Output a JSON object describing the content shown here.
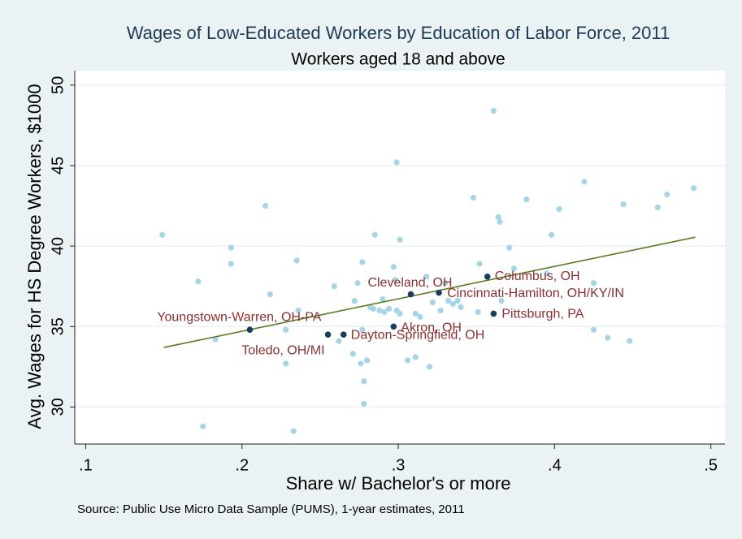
{
  "chart_data": {
    "type": "scatter",
    "title": "Wages of Low-Educated Workers by Education of Labor Force, 2011",
    "subtitle": "Workers aged 18 and above",
    "xlabel": "Share w/ Bachelor's or more",
    "ylabel": "Avg. Wages for HS Degree Workers, $1000",
    "note": "Source: Public Use Micro Data Sample (PUMS), 1-year estimates, 2011",
    "xlim": [
      0.093,
      0.509
    ],
    "ylim": [
      27.7,
      50.9
    ],
    "xticks": [
      {
        "value": 0.1,
        "label": ".1"
      },
      {
        "value": 0.2,
        "label": ".2"
      },
      {
        "value": 0.3,
        "label": ".3"
      },
      {
        "value": 0.4,
        "label": ".4"
      },
      {
        "value": 0.5,
        "label": ".5"
      }
    ],
    "yticks": [
      30,
      35,
      40,
      45,
      50
    ],
    "grid": true,
    "series": [
      {
        "color": "#a6d6e6",
        "x": [
          0.149,
          0.172,
          0.175,
          0.193,
          0.193,
          0.215,
          0.218,
          0.235,
          0.236,
          0.233,
          0.228,
          0.228,
          0.183,
          0.259,
          0.262,
          0.272,
          0.274,
          0.277,
          0.271,
          0.276,
          0.28,
          0.278,
          0.278,
          0.277,
          0.285,
          0.282,
          0.288,
          0.29,
          0.291,
          0.294,
          0.297,
          0.298,
          0.299,
          0.301,
          0.299,
          0.301,
          0.306,
          0.311,
          0.311,
          0.314,
          0.318,
          0.32,
          0.322,
          0.327,
          0.33,
          0.332,
          0.335,
          0.338,
          0.34,
          0.348,
          0.351,
          0.352,
          0.361,
          0.364,
          0.365,
          0.366,
          0.371,
          0.374,
          0.382,
          0.398,
          0.395,
          0.403,
          0.419,
          0.425,
          0.425,
          0.434,
          0.444,
          0.448,
          0.466,
          0.472,
          0.489,
          0.284
        ],
        "y": [
          40.7,
          37.8,
          28.8,
          39.9,
          38.9,
          42.5,
          37.0,
          39.1,
          36.0,
          28.5,
          34.8,
          32.7,
          34.2,
          37.5,
          34.1,
          36.6,
          37.7,
          39.0,
          33.3,
          32.7,
          32.9,
          31.6,
          30.2,
          34.8,
          40.7,
          36.2,
          36.0,
          36.7,
          35.9,
          36.1,
          38.7,
          37.9,
          45.2,
          40.4,
          36.0,
          35.8,
          32.9,
          35.8,
          33.1,
          35.6,
          38.1,
          32.5,
          36.5,
          36.0,
          37.7,
          36.6,
          36.4,
          36.6,
          36.2,
          43.0,
          35.9,
          38.9,
          48.4,
          41.8,
          41.5,
          36.6,
          39.9,
          38.6,
          42.9,
          40.7,
          38.3,
          42.3,
          44.0,
          37.7,
          34.8,
          34.3,
          42.6,
          34.1,
          42.4,
          43.2,
          43.6,
          36.1
        ]
      }
    ],
    "labeled_points": {
      "color": "#1b3d5c",
      "label_color": "#8b3030",
      "labels": [
        "Youngstown-Warren, OH-PA",
        "Toledo, OH/MI",
        "Dayton-Springfield, OH",
        "Akron, OH",
        "Cleveland, OH",
        "Cincinnati-Hamilton, OH/KY/IN",
        "Columbus, OH",
        "Pittsburgh, PA"
      ],
      "x": [
        0.205,
        0.255,
        0.265,
        0.297,
        0.308,
        0.326,
        0.357,
        0.361
      ],
      "y": [
        34.8,
        34.5,
        34.5,
        35.0,
        37.0,
        37.1,
        38.1,
        35.8
      ]
    },
    "fit_line": {
      "color": "#5a7a23",
      "x": [
        0.15,
        0.49
      ],
      "y": [
        33.7,
        40.55
      ]
    }
  }
}
